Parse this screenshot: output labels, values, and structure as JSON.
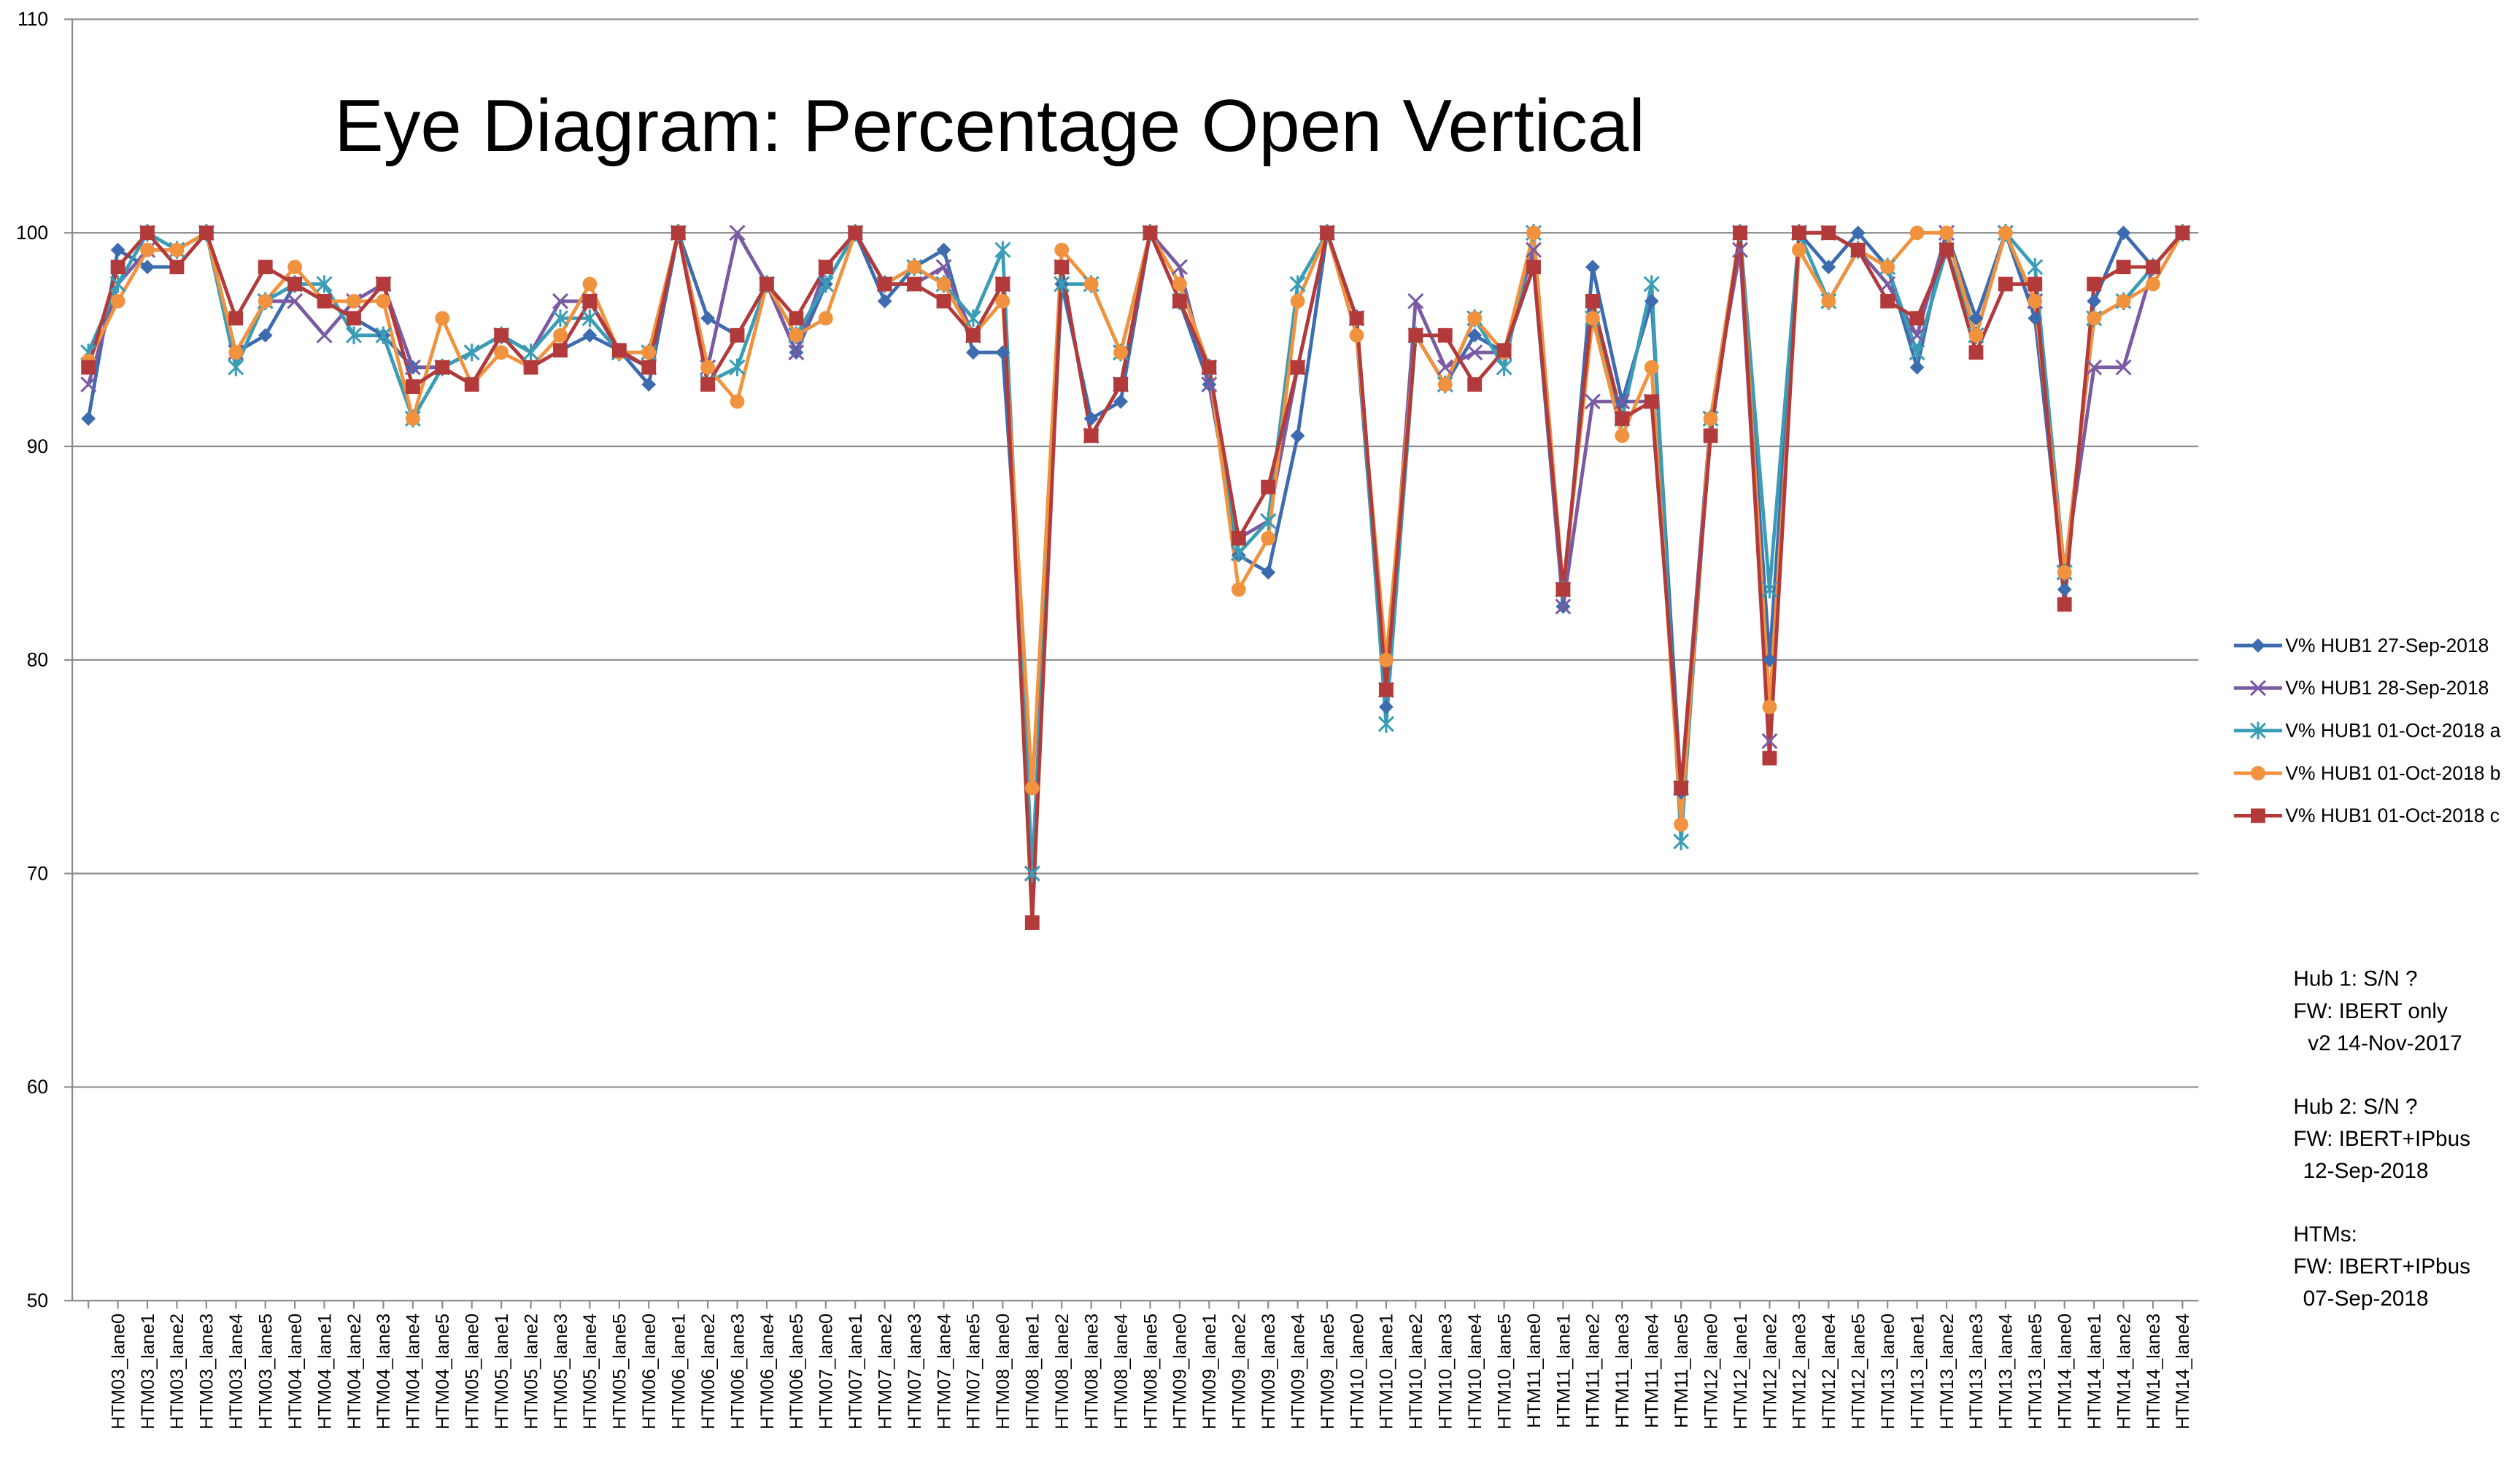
{
  "chart_data": {
    "type": "line",
    "title": "Eye Diagram: Percentage Open Vertical",
    "categories": [
      null,
      "HTM03_lane0",
      "HTM03_lane1",
      "HTM03_lane2",
      "HTM03_lane3",
      "HTM03_lane4",
      "HTM03_lane5",
      "HTM04_lane0",
      "HTM04_lane1",
      "HTM04_lane2",
      "HTM04_lane3",
      "HTM04_lane4",
      "HTM04_lane5",
      "HTM05_lane0",
      "HTM05_lane1",
      "HTM05_lane2",
      "HTM05_lane3",
      "HTM05_lane4",
      "HTM05_lane5",
      "HTM06_lane0",
      "HTM06_lane1",
      "HTM06_lane2",
      "HTM06_lane3",
      "HTM06_lane4",
      "HTM06_lane5",
      "HTM07_lane0",
      "HTM07_lane1",
      "HTM07_lane2",
      "HTM07_lane3",
      "HTM07_lane4",
      "HTM07_lane5",
      "HTM08_lane0",
      "HTM08_lane1",
      "HTM08_lane2",
      "HTM08_lane3",
      "HTM08_lane4",
      "HTM08_lane5",
      "HTM09_lane0",
      "HTM09_lane1",
      "HTM09_lane2",
      "HTM09_lane3",
      "HTM09_lane4",
      "HTM09_lane5",
      "HTM10_lane0",
      "HTM10_lane1",
      "HTM10_lane2",
      "HTM10_lane3",
      "HTM10_lane4",
      "HTM10_lane5",
      "HTM11_lane0",
      "HTM11_lane1",
      "HTM11_lane2",
      "HTM11_lane3",
      "HTM11_lane4",
      "HTM11_lane5",
      "HTM12_lane0",
      "HTM12_lane1",
      "HTM12_lane2",
      "HTM12_lane3",
      "HTM12_lane4",
      "HTM12_lane5",
      "HTM13_lane0",
      "HTM13_lane1",
      "HTM13_lane2",
      "HTM13_lane3",
      "HTM13_lane4",
      "HTM13_lane5",
      "HTM14_lane0",
      "HTM14_lane1",
      "HTM14_lane2",
      "HTM14_lane3",
      "HTM14_lane4"
    ],
    "series": [
      {
        "name": "V% HUB1 27-Sep-2018",
        "color": "#3d6bb0",
        "marker": "diamond",
        "values": [
          91.3,
          99.2,
          98.4,
          98.4,
          100,
          94.4,
          95.2,
          97.6,
          96.8,
          96,
          95.2,
          93.7,
          93.7,
          92.9,
          95.2,
          93.7,
          94.5,
          95.2,
          94.5,
          92.9,
          100,
          96,
          95.2,
          97.6,
          94.4,
          97.6,
          100,
          96.8,
          98.4,
          99.2,
          94.4,
          94.4,
          74,
          97.6,
          91.3,
          92.1,
          100,
          96.8,
          92.9,
          84.9,
          84.1,
          90.5,
          100,
          95.2,
          77.8,
          95.2,
          92.9,
          95.2,
          94.4,
          98.4,
          82.5,
          98.4,
          92.1,
          96.8,
          73.8,
          90.5,
          100,
          80,
          100,
          98.4,
          100,
          98.4,
          93.7,
          100,
          96,
          100,
          96,
          83.3,
          96.8,
          100,
          98.4,
          100
        ]
      },
      {
        "name": "V% HUB1 28-Sep-2018",
        "color": "#7a5ba3",
        "marker": "x",
        "values": [
          92.9,
          97.6,
          99.2,
          99.2,
          100,
          94.4,
          96.8,
          96.8,
          95.2,
          96.8,
          97.6,
          93.7,
          93.7,
          94.4,
          95.2,
          94.4,
          96.8,
          96.8,
          94.4,
          93.7,
          100,
          93.7,
          100,
          97.6,
          94.4,
          98.4,
          100,
          97.6,
          97.6,
          98.4,
          95.2,
          97.6,
          70,
          98.4,
          90.5,
          92.9,
          100,
          98.4,
          92.9,
          85.7,
          86.5,
          93.7,
          100,
          96,
          78.6,
          96.8,
          93.7,
          94.4,
          94.4,
          99.2,
          82.5,
          92.1,
          92.1,
          92.1,
          74,
          91.3,
          99.2,
          76.2,
          100,
          100,
          99.2,
          97.6,
          95.2,
          100,
          95.2,
          100,
          96.8,
          84.1,
          93.7,
          93.7,
          98.4,
          100
        ]
      },
      {
        "name": "V% HUB1 01-Oct-2018 a",
        "color": "#3a9db5",
        "marker": "asterisk",
        "values": [
          94.4,
          97.6,
          100,
          99.2,
          100,
          93.7,
          96.8,
          97.6,
          97.6,
          95.2,
          95.2,
          91.3,
          93.7,
          94.4,
          95.2,
          94.4,
          96,
          96,
          94.4,
          94.4,
          100,
          93,
          93.7,
          97.6,
          95.2,
          97.6,
          100,
          97.6,
          98.4,
          97.6,
          96,
          99.2,
          70,
          97.6,
          97.6,
          94.4,
          100,
          96.8,
          93.7,
          85,
          86.5,
          97.6,
          100,
          96,
          77,
          95.2,
          92.9,
          96,
          93.7,
          100,
          83.3,
          96,
          91.3,
          97.6,
          71.5,
          91.3,
          100,
          83.3,
          100,
          96.8,
          99.2,
          98.4,
          94.4,
          99.2,
          95.2,
          100,
          98.4,
          84.1,
          96,
          96.8,
          98.4,
          100
        ]
      },
      {
        "name": "V% HUB1 01-Oct-2018 b",
        "color": "#f0923e",
        "marker": "circle",
        "values": [
          94,
          96.8,
          99.2,
          99.2,
          100,
          94.4,
          96.8,
          98.4,
          96.8,
          96.8,
          96.8,
          91.3,
          96,
          92.9,
          94.4,
          93.7,
          95.2,
          97.6,
          94.4,
          94.4,
          100,
          93.7,
          92.1,
          97.6,
          95.2,
          96,
          100,
          97.6,
          98.4,
          97.6,
          95.2,
          96.8,
          74,
          99.2,
          97.6,
          94.4,
          100,
          97.6,
          93.7,
          83.3,
          85.7,
          96.8,
          100,
          95.2,
          80,
          95.2,
          92.9,
          96,
          94.4,
          100,
          83.3,
          96,
          90.5,
          93.7,
          72.3,
          91.3,
          100,
          77.8,
          99.2,
          96.8,
          99.2,
          98.4,
          100,
          100,
          95.2,
          100,
          96.8,
          84.1,
          96,
          96.8,
          97.6,
          100
        ]
      },
      {
        "name": "V% HUB1 01-Oct-2018 c",
        "color": "#b23a3a",
        "marker": "square",
        "values": [
          93.7,
          98.4,
          100,
          98.4,
          100,
          96,
          98.4,
          97.6,
          96.8,
          96,
          97.6,
          92.8,
          93.7,
          92.9,
          95.2,
          93.7,
          94.5,
          96.8,
          94.5,
          93.7,
          100,
          92.9,
          95.2,
          97.6,
          96,
          98.4,
          100,
          97.6,
          97.6,
          96.8,
          95.2,
          97.6,
          67.7,
          98.4,
          90.5,
          92.9,
          100,
          96.8,
          93.7,
          85.7,
          88.1,
          93.7,
          100,
          96,
          78.6,
          95.2,
          95.2,
          92.9,
          94.5,
          98.4,
          83.3,
          96.8,
          91.3,
          92.1,
          74,
          90.5,
          100,
          75.4,
          100,
          100,
          99.2,
          96.8,
          96,
          99.2,
          94.4,
          97.6,
          97.6,
          82.6,
          97.6,
          98.4,
          98.4,
          100
        ]
      }
    ],
    "ylim": [
      50,
      110
    ],
    "yticks": [
      50,
      60,
      70,
      80,
      90,
      100,
      110
    ],
    "grid": true,
    "legend": "right",
    "annotations": [
      [
        "Hub 1:  S/N ?",
        "FW:  IBERT only",
        "v2  14-Nov-2017"
      ],
      [
        "Hub 2:  S/N ?",
        "FW: IBERT+IPbus",
        "12-Sep-2018"
      ],
      [
        "HTMs:",
        "FW: IBERT+IPbus",
        "07-Sep-2018"
      ]
    ]
  }
}
